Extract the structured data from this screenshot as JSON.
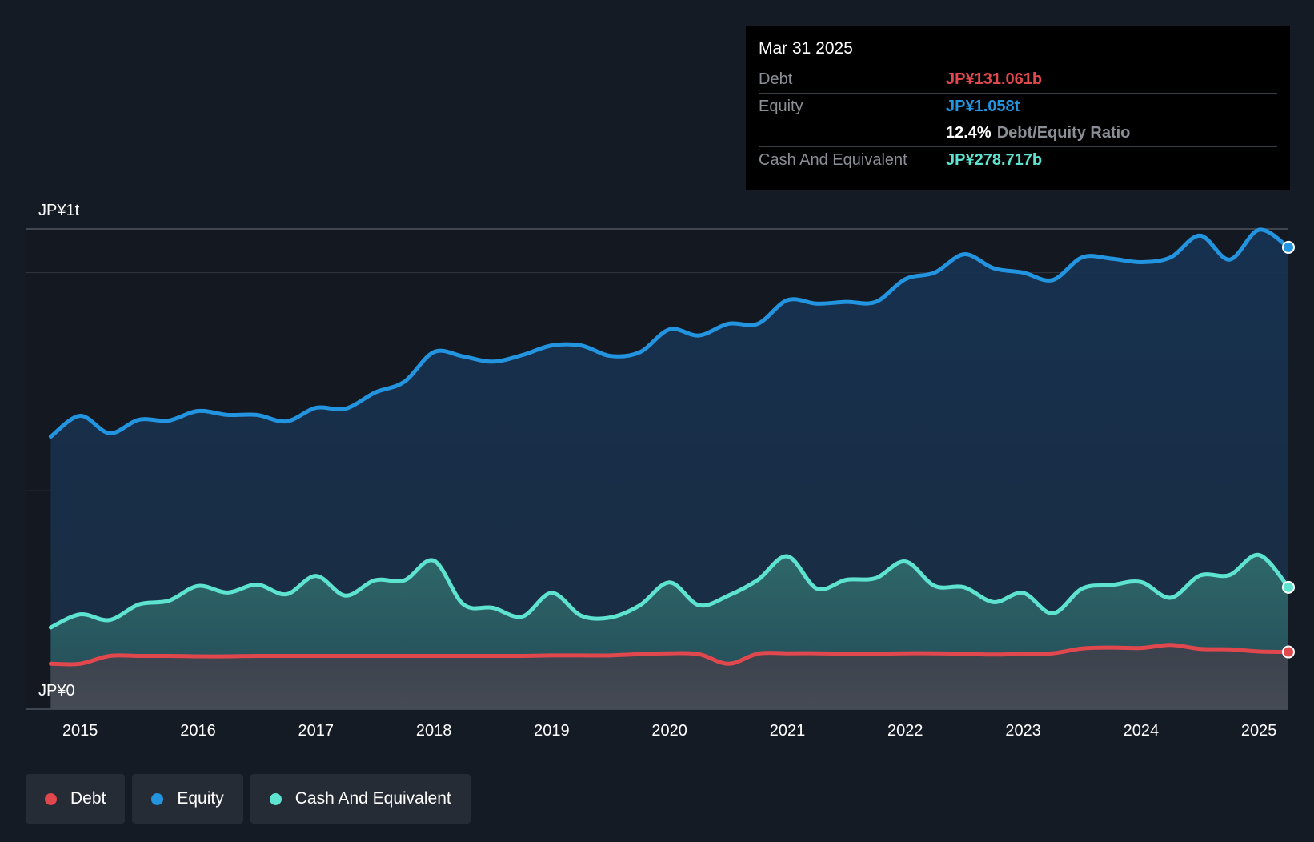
{
  "chart_data": {
    "type": "area",
    "title": "",
    "ylabel_top": "JP¥1t",
    "ylabel_bottom": "JP¥0",
    "ylim": [
      0,
      1.1
    ],
    "xlim": [
      2014.7,
      2025.25
    ],
    "gridlines": [
      0.5,
      1.0
    ],
    "x_ticks": [
      "2015",
      "2016",
      "2017",
      "2018",
      "2019",
      "2020",
      "2021",
      "2022",
      "2023",
      "2024",
      "2025"
    ],
    "x_tick_values": [
      2015,
      2016,
      2017,
      2018,
      2019,
      2020,
      2021,
      2022,
      2023,
      2024,
      2025
    ],
    "units": "JP¥ trillions",
    "series": [
      {
        "name": "Equity",
        "color": "#2394df",
        "x": [
          2014.75,
          2015.0,
          2015.25,
          2015.5,
          2015.75,
          2016.0,
          2016.25,
          2016.5,
          2016.75,
          2017.0,
          2017.25,
          2017.5,
          2017.75,
          2018.0,
          2018.25,
          2018.5,
          2018.75,
          2019.0,
          2019.25,
          2019.5,
          2019.75,
          2020.0,
          2020.25,
          2020.5,
          2020.75,
          2021.0,
          2021.25,
          2021.5,
          2021.75,
          2022.0,
          2022.25,
          2022.5,
          2022.75,
          2023.0,
          2023.25,
          2023.5,
          2023.75,
          2024.0,
          2024.25,
          2024.5,
          2024.75,
          2025.0,
          2025.25
        ],
        "values": [
          0.624,
          0.672,
          0.632,
          0.663,
          0.661,
          0.683,
          0.674,
          0.674,
          0.659,
          0.69,
          0.688,
          0.725,
          0.75,
          0.818,
          0.808,
          0.796,
          0.811,
          0.833,
          0.833,
          0.809,
          0.818,
          0.87,
          0.856,
          0.883,
          0.883,
          0.937,
          0.929,
          0.933,
          0.933,
          0.985,
          1.0,
          1.042,
          1.01,
          1.0,
          0.983,
          1.035,
          1.032,
          1.024,
          1.035,
          1.085,
          1.03,
          1.098,
          1.058
        ]
      },
      {
        "name": "Cash And Equivalent",
        "color": "#5de3cf",
        "x": [
          2014.75,
          2015.0,
          2015.25,
          2015.5,
          2015.75,
          2016.0,
          2016.25,
          2016.5,
          2016.75,
          2017.0,
          2017.25,
          2017.5,
          2017.75,
          2018.0,
          2018.25,
          2018.5,
          2018.75,
          2019.0,
          2019.25,
          2019.5,
          2019.75,
          2020.0,
          2020.25,
          2020.5,
          2020.75,
          2021.0,
          2021.25,
          2021.5,
          2021.75,
          2022.0,
          2022.25,
          2022.5,
          2022.75,
          2023.0,
          2023.25,
          2023.5,
          2023.75,
          2024.0,
          2024.25,
          2024.5,
          2024.75,
          2025.0,
          2025.25
        ],
        "values": [
          0.187,
          0.217,
          0.204,
          0.24,
          0.248,
          0.282,
          0.267,
          0.285,
          0.263,
          0.305,
          0.26,
          0.295,
          0.295,
          0.34,
          0.24,
          0.232,
          0.212,
          0.266,
          0.214,
          0.21,
          0.238,
          0.29,
          0.238,
          0.26,
          0.296,
          0.35,
          0.276,
          0.296,
          0.3,
          0.338,
          0.282,
          0.279,
          0.245,
          0.266,
          0.219,
          0.276,
          0.284,
          0.291,
          0.255,
          0.306,
          0.307,
          0.353,
          0.279
        ]
      },
      {
        "name": "Debt",
        "color": "#e0484e",
        "x": [
          2014.75,
          2015.0,
          2015.25,
          2015.5,
          2015.75,
          2016.0,
          2016.25,
          2016.5,
          2016.75,
          2017.0,
          2017.25,
          2017.5,
          2017.75,
          2018.0,
          2018.25,
          2018.5,
          2018.75,
          2019.0,
          2019.25,
          2019.5,
          2019.75,
          2020.0,
          2020.25,
          2020.5,
          2020.75,
          2021.0,
          2021.25,
          2021.5,
          2021.75,
          2022.0,
          2022.25,
          2022.5,
          2022.75,
          2023.0,
          2023.25,
          2023.5,
          2023.75,
          2024.0,
          2024.25,
          2024.5,
          2024.75,
          2025.0,
          2025.25
        ],
        "values": [
          0.104,
          0.104,
          0.122,
          0.122,
          0.122,
          0.121,
          0.121,
          0.122,
          0.122,
          0.122,
          0.122,
          0.122,
          0.122,
          0.122,
          0.122,
          0.122,
          0.122,
          0.123,
          0.123,
          0.123,
          0.126,
          0.128,
          0.126,
          0.104,
          0.127,
          0.128,
          0.128,
          0.127,
          0.127,
          0.128,
          0.128,
          0.127,
          0.125,
          0.127,
          0.128,
          0.139,
          0.141,
          0.14,
          0.147,
          0.138,
          0.137,
          0.132,
          0.131
        ]
      }
    ]
  },
  "tooltip": {
    "date": "Mar 31 2025",
    "debt_label": "Debt",
    "debt_value": "JP¥131.061b",
    "equity_label": "Equity",
    "equity_value": "JP¥1.058t",
    "ratio_value": "12.4%",
    "ratio_label": "Debt/Equity Ratio",
    "cash_label": "Cash And Equivalent",
    "cash_value": "JP¥278.717b",
    "colors": {
      "debt": "#e0484e",
      "equity": "#2394df",
      "cash": "#5de3cf"
    }
  },
  "legend": [
    {
      "label": "Debt",
      "color": "#e0484e"
    },
    {
      "label": "Equity",
      "color": "#2394df"
    },
    {
      "label": "Cash And Equivalent",
      "color": "#5de3cf"
    }
  ]
}
